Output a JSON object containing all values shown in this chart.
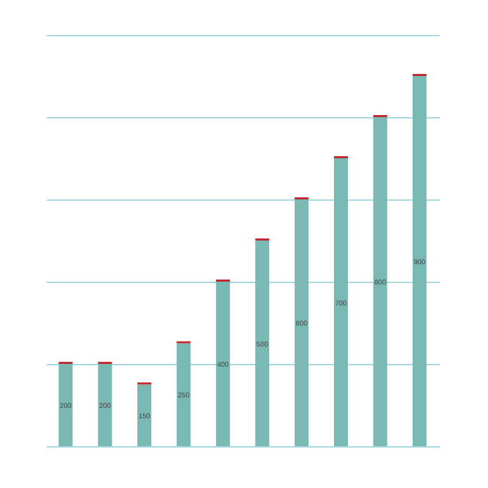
{
  "chart_data": {
    "type": "bar",
    "stacked": true,
    "categories": [
      null,
      null,
      null,
      null,
      null,
      null,
      null,
      null,
      null,
      null
    ],
    "series": [
      {
        "color": "#7ab8b4",
        "values": [
          200,
          200,
          150,
          250,
          400,
          500,
          600,
          700,
          800,
          900
        ],
        "value_labels": [
          "200",
          "200",
          "150",
          "250",
          "400",
          "500",
          "600",
          "700",
          "800",
          "900"
        ]
      },
      {
        "color": "#c0282d",
        "values": [
          5,
          5,
          5,
          5,
          5,
          5,
          5,
          5,
          5,
          5
        ]
      }
    ],
    "ylim": [
      0,
      1000
    ],
    "yticks": [
      {
        "value": 0,
        "label": null
      },
      {
        "value": 200,
        "label": null
      },
      {
        "value": 400,
        "label": null
      },
      {
        "value": 600,
        "label": null
      },
      {
        "value": 800,
        "label": null
      },
      {
        "value": 1000,
        "label": null
      }
    ],
    "grid": "y",
    "tick_labels": false
  }
}
